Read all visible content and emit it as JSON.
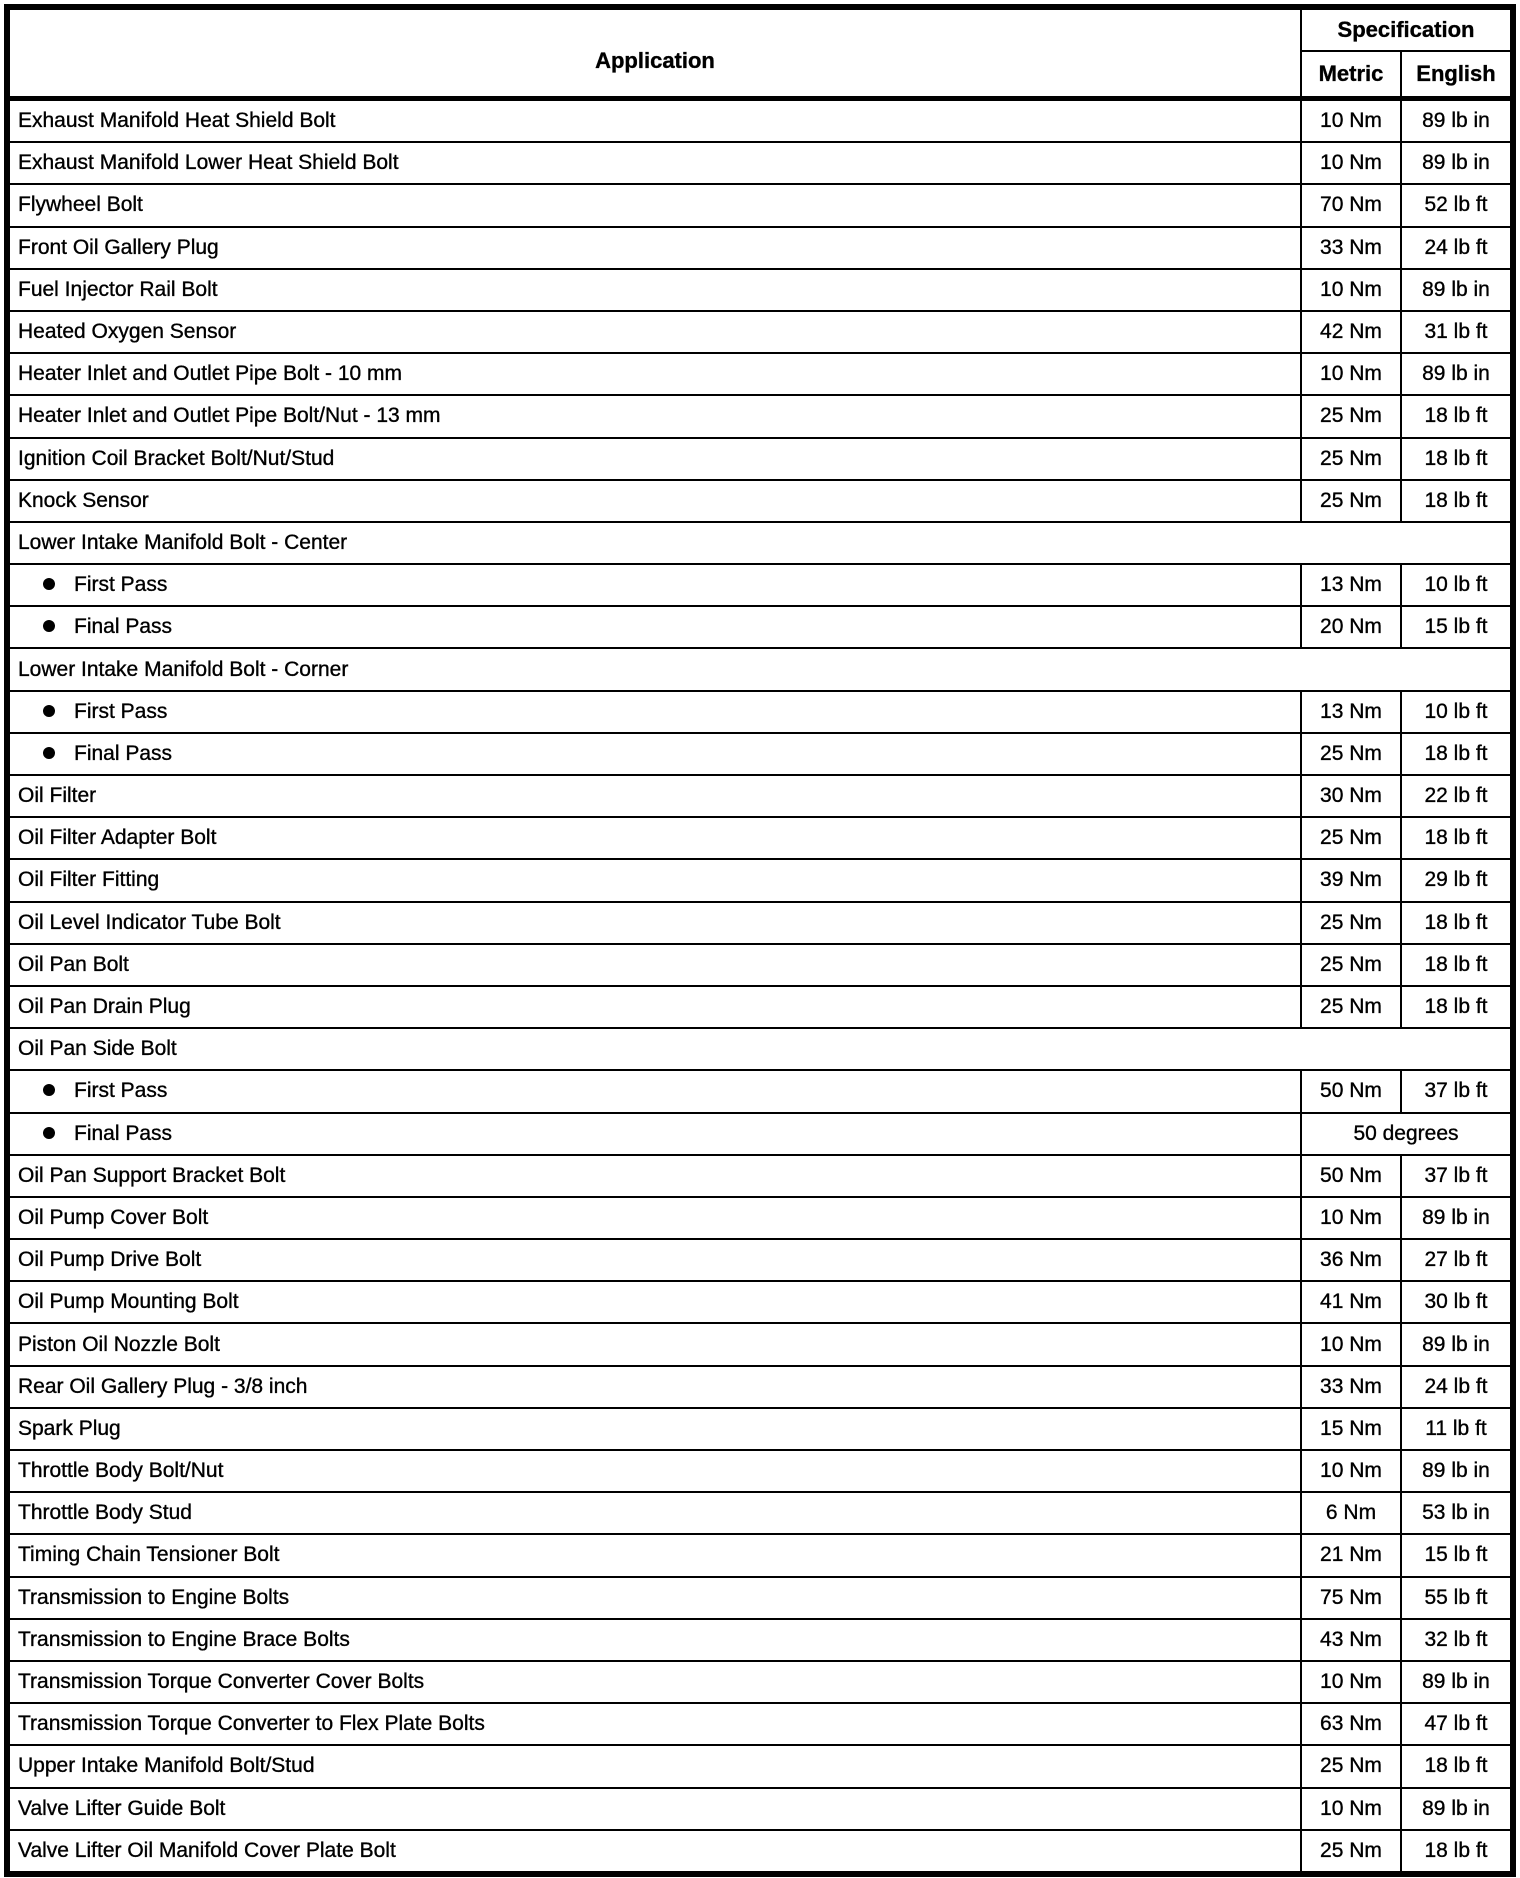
{
  "page": {
    "background": "#ffffff",
    "text_color": "#000000",
    "border_color": "#000000"
  },
  "table": {
    "header": {
      "application_label": "Application",
      "specification_label": "Specification",
      "metric_label": "Metric",
      "english_label": "English"
    },
    "rows": [
      {
        "type": "item",
        "application": "Exhaust Manifold Heat Shield Bolt",
        "metric": "10 Nm",
        "english": "89 lb in"
      },
      {
        "type": "item",
        "application": "Exhaust Manifold Lower Heat Shield Bolt",
        "metric": "10 Nm",
        "english": "89 lb in"
      },
      {
        "type": "item",
        "application": "Flywheel Bolt",
        "metric": "70 Nm",
        "english": "52 lb ft"
      },
      {
        "type": "item",
        "application": "Front Oil Gallery Plug",
        "metric": "33 Nm",
        "english": "24 lb ft"
      },
      {
        "type": "item",
        "application": "Fuel Injector Rail Bolt",
        "metric": "10 Nm",
        "english": "89 lb in"
      },
      {
        "type": "item",
        "application": "Heated Oxygen Sensor",
        "metric": "42 Nm",
        "english": "31 lb ft"
      },
      {
        "type": "item",
        "application": "Heater Inlet and Outlet Pipe Bolt - 10 mm",
        "metric": "10 Nm",
        "english": "89 lb in"
      },
      {
        "type": "item",
        "application": "Heater Inlet and Outlet Pipe Bolt/Nut - 13 mm",
        "metric": "25 Nm",
        "english": "18 lb ft"
      },
      {
        "type": "item",
        "application": "Ignition Coil Bracket Bolt/Nut/Stud",
        "metric": "25 Nm",
        "english": "18 lb ft"
      },
      {
        "type": "item",
        "application": "Knock Sensor",
        "metric": "25 Nm",
        "english": "18 lb ft"
      },
      {
        "type": "section",
        "application": "Lower Intake Manifold Bolt - Center"
      },
      {
        "type": "bullet",
        "application": "First Pass",
        "metric": "13 Nm",
        "english": "10 lb ft"
      },
      {
        "type": "bullet",
        "application": "Final Pass",
        "metric": "20 Nm",
        "english": "15 lb ft"
      },
      {
        "type": "section",
        "application": "Lower Intake Manifold Bolt - Corner"
      },
      {
        "type": "bullet",
        "application": "First Pass",
        "metric": "13 Nm",
        "english": "10 lb ft"
      },
      {
        "type": "bullet",
        "application": "Final Pass",
        "metric": "25 Nm",
        "english": "18 lb ft"
      },
      {
        "type": "item",
        "application": "Oil Filter",
        "metric": "30 Nm",
        "english": "22 lb ft"
      },
      {
        "type": "item",
        "application": "Oil Filter Adapter Bolt",
        "metric": "25 Nm",
        "english": "18 lb ft"
      },
      {
        "type": "item",
        "application": "Oil Filter Fitting",
        "metric": "39 Nm",
        "english": "29 lb ft"
      },
      {
        "type": "item",
        "application": "Oil Level Indicator Tube Bolt",
        "metric": "25 Nm",
        "english": "18 lb ft"
      },
      {
        "type": "item",
        "application": "Oil Pan Bolt",
        "metric": "25 Nm",
        "english": "18 lb ft"
      },
      {
        "type": "item",
        "application": "Oil Pan Drain Plug",
        "metric": "25 Nm",
        "english": "18 lb ft"
      },
      {
        "type": "section",
        "application": "Oil Pan Side Bolt"
      },
      {
        "type": "bullet",
        "application": "First Pass",
        "metric": "50 Nm",
        "english": "37 lb ft"
      },
      {
        "type": "bullet_span",
        "application": "Final Pass",
        "spec": "50 degrees"
      },
      {
        "type": "item",
        "application": "Oil Pan Support Bracket Bolt",
        "metric": "50 Nm",
        "english": "37 lb ft"
      },
      {
        "type": "item",
        "application": "Oil Pump Cover Bolt",
        "metric": "10 Nm",
        "english": "89 lb in"
      },
      {
        "type": "item",
        "application": "Oil Pump Drive Bolt",
        "metric": "36 Nm",
        "english": "27 lb ft"
      },
      {
        "type": "item",
        "application": "Oil Pump Mounting Bolt",
        "metric": "41 Nm",
        "english": "30 lb ft"
      },
      {
        "type": "item",
        "application": "Piston Oil Nozzle Bolt",
        "metric": "10 Nm",
        "english": "89 lb in"
      },
      {
        "type": "item",
        "application": "Rear Oil Gallery Plug - 3/8 inch",
        "metric": "33 Nm",
        "english": "24 lb ft"
      },
      {
        "type": "item",
        "application": "Spark Plug",
        "metric": "15 Nm",
        "english": "11 lb ft"
      },
      {
        "type": "item",
        "application": "Throttle Body Bolt/Nut",
        "metric": "10 Nm",
        "english": "89 lb in"
      },
      {
        "type": "item",
        "application": "Throttle Body Stud",
        "metric": "6 Nm",
        "english": "53 lb in"
      },
      {
        "type": "item",
        "application": "Timing Chain Tensioner Bolt",
        "metric": "21 Nm",
        "english": "15 lb ft"
      },
      {
        "type": "item",
        "application": "Transmission to Engine Bolts",
        "metric": "75 Nm",
        "english": "55 lb ft"
      },
      {
        "type": "item",
        "application": "Transmission to Engine Brace Bolts",
        "metric": "43 Nm",
        "english": "32 lb ft"
      },
      {
        "type": "item",
        "application": "Transmission Torque Converter Cover Bolts",
        "metric": "10 Nm",
        "english": "89 lb in"
      },
      {
        "type": "item",
        "application": "Transmission Torque Converter to Flex Plate Bolts",
        "metric": "63 Nm",
        "english": "47 lb ft"
      },
      {
        "type": "item",
        "application": "Upper Intake Manifold Bolt/Stud",
        "metric": "25 Nm",
        "english": "18 lb ft"
      },
      {
        "type": "item",
        "application": "Valve Lifter Guide Bolt",
        "metric": "10 Nm",
        "english": "89 lb in"
      },
      {
        "type": "item",
        "application": "Valve Lifter Oil Manifold Cover Plate Bolt",
        "metric": "25 Nm",
        "english": "18 lb ft"
      }
    ]
  }
}
